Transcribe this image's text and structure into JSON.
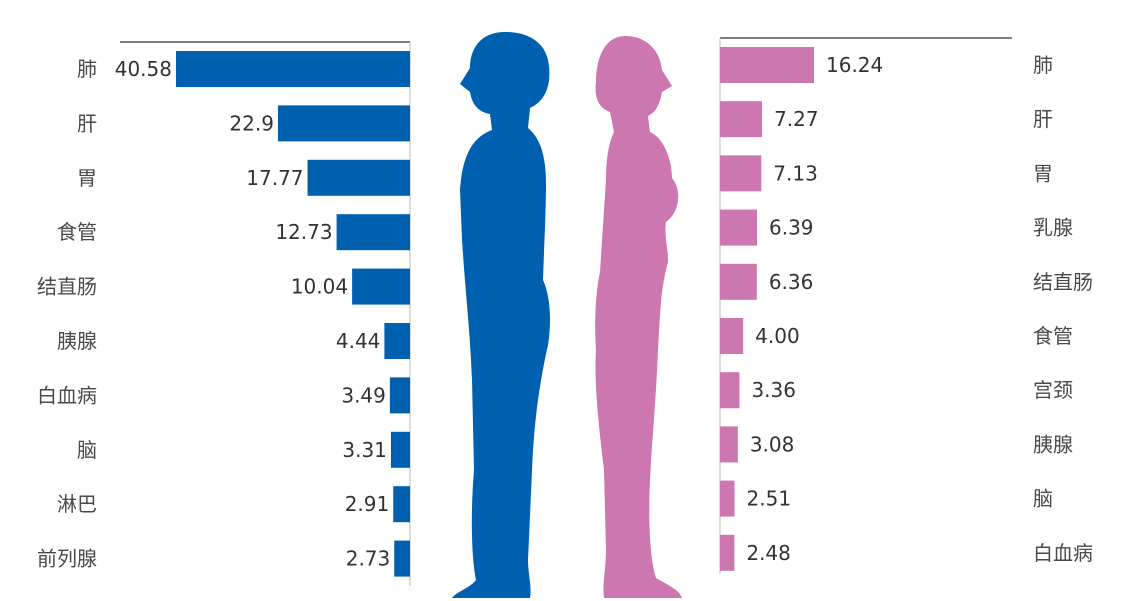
{
  "chart_data": [
    {
      "type": "bar",
      "orientation": "horizontal",
      "direction": "right-to-left",
      "categories": [
        "肺",
        "肝",
        "胃",
        "食管",
        "结直肠",
        "胰腺",
        "白血病",
        "脑",
        "淋巴",
        "前列腺"
      ],
      "values": [
        40.58,
        22.9,
        17.77,
        12.73,
        10.04,
        4.44,
        3.49,
        3.31,
        2.91,
        2.73
      ],
      "value_labels": [
        "40.58",
        "22.9",
        "17.77",
        "12.73",
        "10.04",
        "4.44",
        "3.49",
        "3.31",
        "2.91",
        "2.73"
      ],
      "color": "#0060b0",
      "title": "",
      "xlabel": "",
      "ylabel": ""
    },
    {
      "type": "bar",
      "orientation": "horizontal",
      "direction": "left-to-right",
      "categories": [
        "肺",
        "肝",
        "胃",
        "乳腺",
        "结直肠",
        "食管",
        "宫颈",
        "胰腺",
        "脑",
        "白血病"
      ],
      "values": [
        16.24,
        7.27,
        7.13,
        6.39,
        6.36,
        4.0,
        3.36,
        3.08,
        2.51,
        2.48
      ],
      "value_labels": [
        "16.24",
        "7.27",
        "7.13",
        "6.39",
        "6.36",
        "4.00",
        "3.36",
        "3.08",
        "2.51",
        "2.48"
      ],
      "color": "#cc77b0",
      "title": "",
      "xlabel": "",
      "ylabel": ""
    }
  ],
  "figures": {
    "male_color": "#0060b0",
    "female_color": "#cc77b0",
    "male_icon": "male-silhouette-icon",
    "female_icon": "female-silhouette-icon"
  }
}
